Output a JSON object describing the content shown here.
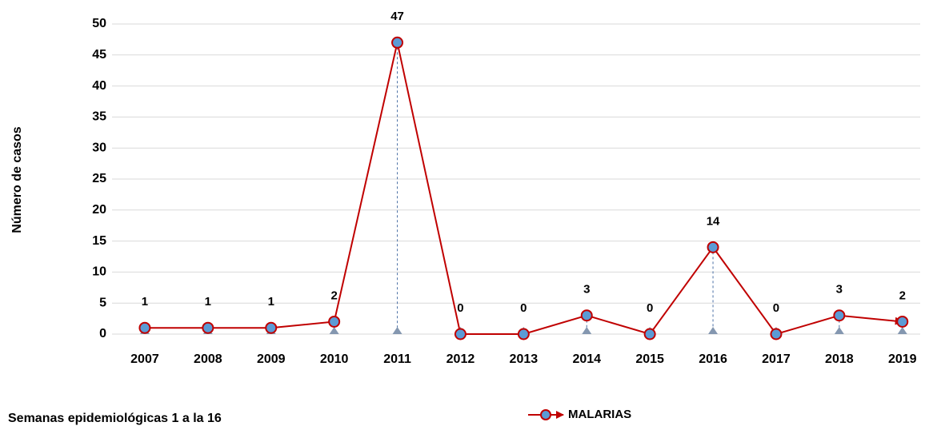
{
  "chart_data": {
    "type": "line",
    "y_label": "Número de casos",
    "annotation": "Semanas epidemiológicas 1 a la 16",
    "categories": [
      "2007",
      "2008",
      "2009",
      "2010",
      "2011",
      "2012",
      "2013",
      "2014",
      "2015",
      "2016",
      "2017",
      "2018",
      "2019"
    ],
    "series": [
      {
        "name": "MALARIAS",
        "color": "#c00000",
        "marker_color": "#5b9bd5",
        "values": [
          1,
          1,
          1,
          2,
          47,
          0,
          0,
          3,
          0,
          14,
          0,
          3,
          2
        ]
      }
    ],
    "ylim": [
      0,
      50
    ],
    "yticks": [
      0,
      5,
      10,
      15,
      20,
      25,
      30,
      35,
      40,
      45,
      50
    ],
    "grid": true,
    "legend": "bottom"
  }
}
